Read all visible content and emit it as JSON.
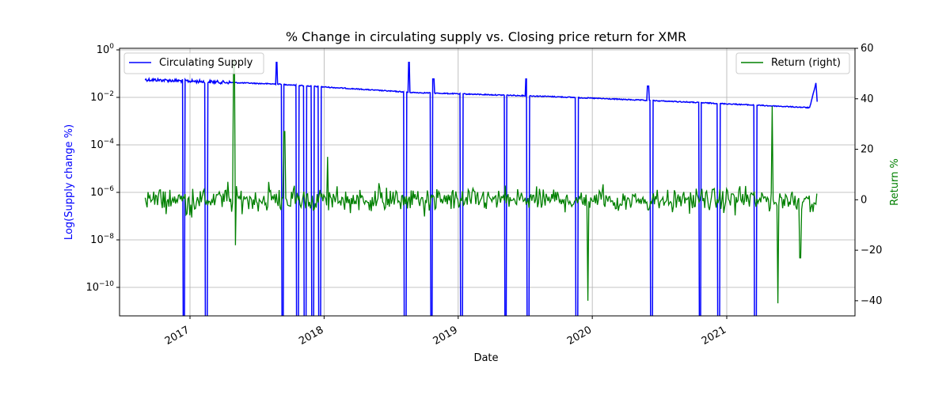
{
  "chart_data": {
    "type": "line",
    "title": "% Change in circulating supply vs. Closing price return for XMR",
    "xlabel": "Date",
    "ylabel_left": "Log(Supply change %)",
    "ylabel_right": "Return %",
    "x_ticks": [
      "2017",
      "2018",
      "2019",
      "2020",
      "2021"
    ],
    "y_left_scale": "log",
    "y_left_ticks": [
      "10^0",
      "10^-2",
      "10^-4",
      "10^-6",
      "10^-8",
      "10^-10"
    ],
    "y_right_ticks": [
      60,
      40,
      20,
      0,
      -20,
      -40
    ],
    "y_right_lim": [
      -46,
      60
    ],
    "grid": true,
    "legend_left": "top-left",
    "legend_right": "top-right",
    "series": [
      {
        "name": "Circulating Supply",
        "axis": "left",
        "color": "#0000ff",
        "trend": [
          {
            "x": "2016-09-01",
            "y": 0.056
          },
          {
            "x": "2017-09-01",
            "y": 0.036
          },
          {
            "x": "2018-09-01",
            "y": 0.016
          },
          {
            "x": "2019-09-01",
            "y": 0.011
          },
          {
            "x": "2020-09-01",
            "y": 0.0065
          },
          {
            "x": "2021-08-15",
            "y": 0.0037
          },
          {
            "x": "2021-09-01",
            "y": 0.042
          },
          {
            "x": "2021-09-05",
            "y": 0.0035
          }
        ],
        "drops": [
          "2016-12-15",
          "2017-02-15",
          "2017-09-10",
          "2017-10-20",
          "2017-11-10",
          "2017-12-01",
          "2017-12-20",
          "2018-08-10",
          "2018-10-20",
          "2019-01-10",
          "2019-05-10",
          "2019-07-10",
          "2019-11-20",
          "2020-06-10",
          "2020-10-20",
          "2020-12-10",
          "2021-03-20"
        ],
        "spikes_up": [
          {
            "x": "2017-08-25",
            "y": 0.3
          },
          {
            "x": "2018-08-20",
            "y": 0.3
          },
          {
            "x": "2018-10-25",
            "y": 0.06
          },
          {
            "x": "2019-07-05",
            "y": 0.06
          },
          {
            "x": "2020-06-01",
            "y": 0.03
          }
        ]
      },
      {
        "name": "Return (right)",
        "axis": "right",
        "color": "#008000",
        "range": [
          -12,
          12
        ],
        "extremes": [
          {
            "x": "2017-05-01",
            "y": 55
          },
          {
            "x": "2017-05-05",
            "y": -18
          },
          {
            "x": "2017-09-15",
            "y": 27
          },
          {
            "x": "2018-01-10",
            "y": 17
          },
          {
            "x": "2019-12-20",
            "y": -40
          },
          {
            "x": "2021-05-05",
            "y": 37
          },
          {
            "x": "2021-05-20",
            "y": -41
          },
          {
            "x": "2021-07-20",
            "y": -23
          }
        ]
      }
    ]
  }
}
